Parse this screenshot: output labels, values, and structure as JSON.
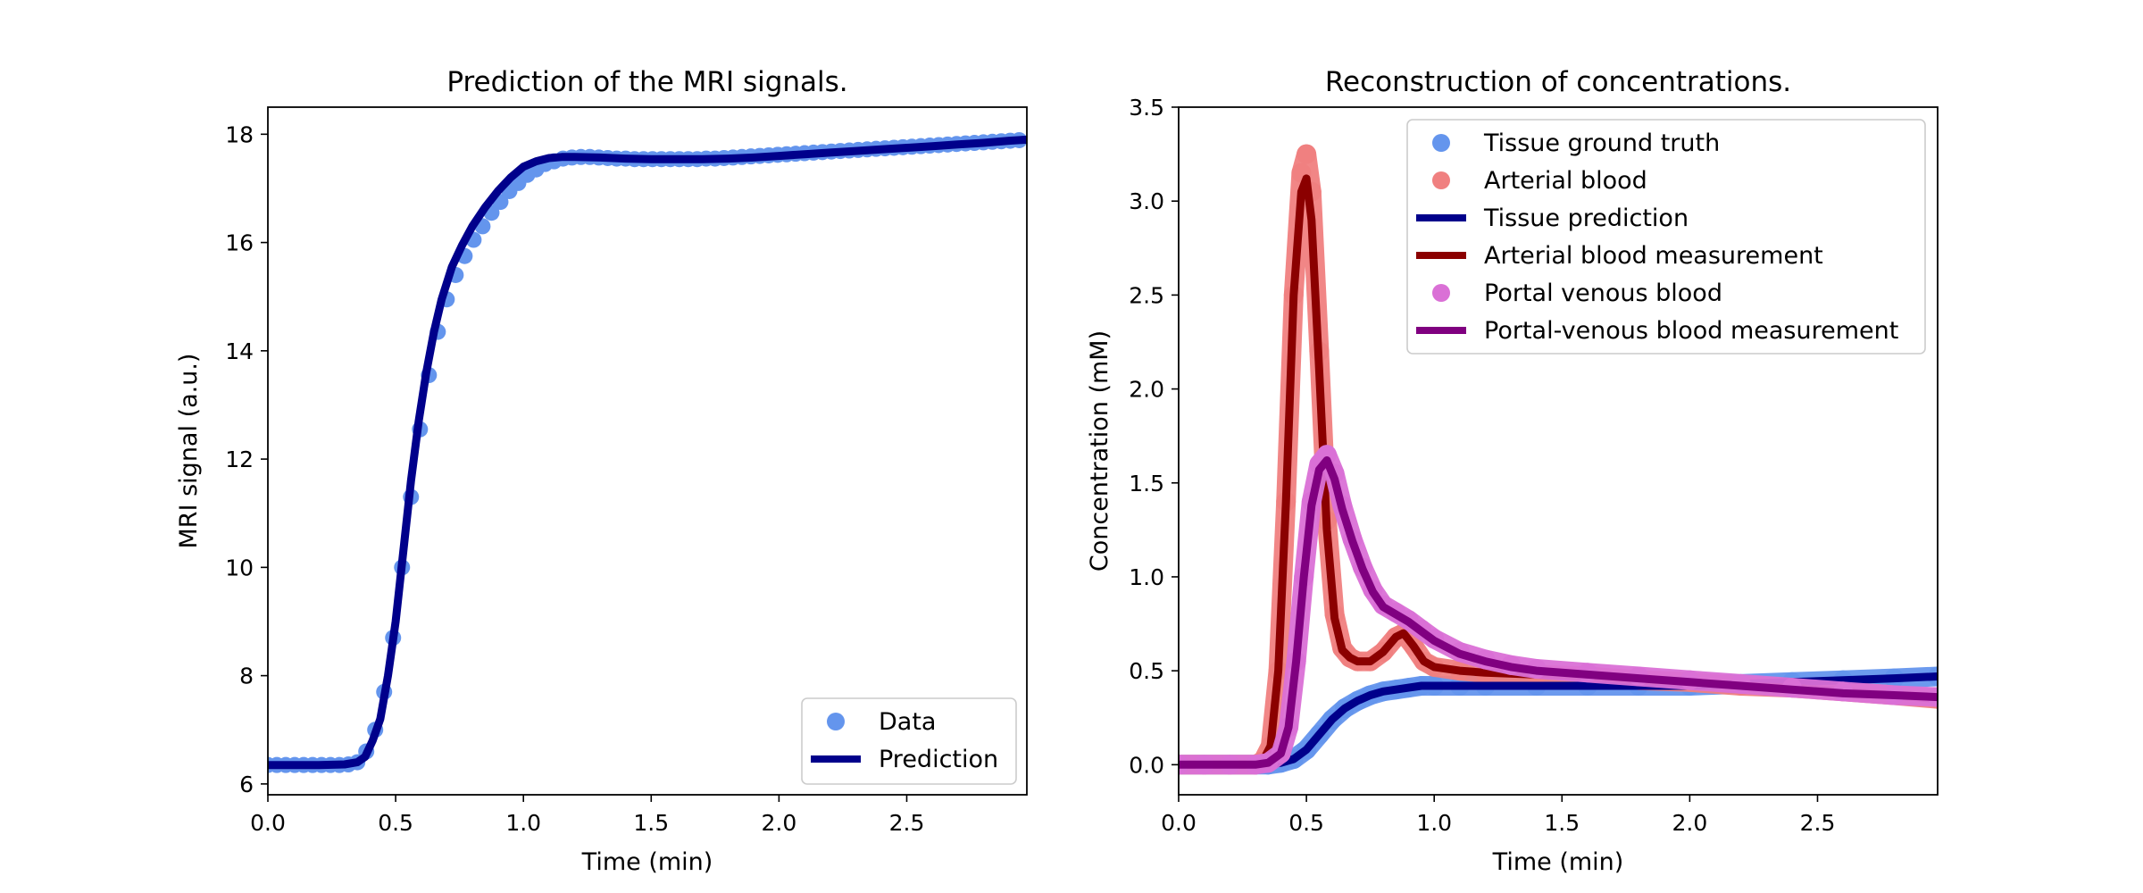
{
  "chart_data": [
    {
      "type": "line",
      "title": "Prediction of the MRI signals.",
      "xlabel": "Time (min)",
      "ylabel": "MRI signal (a.u.)",
      "xlim": [
        0.0,
        2.97
      ],
      "ylim": [
        5.8,
        18.5
      ],
      "xticks": [
        "0.0",
        "0.5",
        "1.0",
        "1.5",
        "2.0",
        "2.5"
      ],
      "yticks": [
        "6",
        "8",
        "10",
        "12",
        "14",
        "16",
        "18"
      ],
      "grid": false,
      "legend_position": "lower-right",
      "series": [
        {
          "name": "Data",
          "style": "scatter",
          "color": "#6495ED",
          "x": [
            0.0,
            0.035,
            0.07,
            0.105,
            0.14,
            0.175,
            0.21,
            0.245,
            0.28,
            0.315,
            0.35,
            0.385,
            0.42,
            0.455,
            0.49,
            0.525,
            0.56,
            0.595,
            0.63,
            0.665,
            0.7,
            0.735,
            0.77,
            0.805,
            0.84,
            0.875,
            0.91,
            0.945,
            0.98,
            1.015,
            1.05,
            1.085,
            1.12,
            1.155,
            1.19,
            1.225,
            1.26,
            1.295,
            1.33,
            1.365,
            1.4,
            1.435,
            1.47,
            1.505,
            1.54,
            1.575,
            1.61,
            1.645,
            1.68,
            1.715,
            1.75,
            1.785,
            1.82,
            1.855,
            1.89,
            1.925,
            1.96,
            1.995,
            2.03,
            2.065,
            2.1,
            2.135,
            2.17,
            2.205,
            2.24,
            2.275,
            2.31,
            2.345,
            2.38,
            2.415,
            2.45,
            2.485,
            2.52,
            2.555,
            2.59,
            2.625,
            2.66,
            2.695,
            2.73,
            2.765,
            2.8,
            2.835,
            2.87,
            2.905,
            2.94
          ],
          "y": [
            6.35,
            6.35,
            6.35,
            6.35,
            6.35,
            6.35,
            6.35,
            6.35,
            6.35,
            6.36,
            6.4,
            6.6,
            7.0,
            7.7,
            8.7,
            10.0,
            11.3,
            12.55,
            13.55,
            14.35,
            14.95,
            15.4,
            15.75,
            16.05,
            16.3,
            16.55,
            16.75,
            16.95,
            17.1,
            17.25,
            17.35,
            17.45,
            17.5,
            17.55,
            17.57,
            17.58,
            17.58,
            17.57,
            17.56,
            17.55,
            17.55,
            17.54,
            17.54,
            17.54,
            17.54,
            17.54,
            17.54,
            17.54,
            17.54,
            17.55,
            17.55,
            17.56,
            17.57,
            17.58,
            17.59,
            17.6,
            17.61,
            17.62,
            17.63,
            17.64,
            17.65,
            17.66,
            17.67,
            17.68,
            17.69,
            17.7,
            17.71,
            17.72,
            17.73,
            17.74,
            17.75,
            17.76,
            17.77,
            17.78,
            17.79,
            17.8,
            17.81,
            17.82,
            17.83,
            17.84,
            17.85,
            17.86,
            17.87,
            17.88,
            17.89
          ]
        },
        {
          "name": "Prediction",
          "style": "line",
          "color": "#00008B",
          "x": [
            0.0,
            0.1,
            0.2,
            0.3,
            0.35,
            0.38,
            0.41,
            0.44,
            0.47,
            0.5,
            0.53,
            0.56,
            0.59,
            0.62,
            0.65,
            0.68,
            0.72,
            0.76,
            0.8,
            0.85,
            0.9,
            0.95,
            1.0,
            1.05,
            1.1,
            1.15,
            1.2,
            1.3,
            1.4,
            1.5,
            1.6,
            1.7,
            1.8,
            1.9,
            2.0,
            2.1,
            2.2,
            2.3,
            2.4,
            2.5,
            2.6,
            2.7,
            2.8,
            2.9,
            2.97
          ],
          "y": [
            6.35,
            6.35,
            6.35,
            6.36,
            6.4,
            6.5,
            6.8,
            7.2,
            8.0,
            9.0,
            10.3,
            11.6,
            12.7,
            13.6,
            14.35,
            14.95,
            15.55,
            15.95,
            16.3,
            16.65,
            16.95,
            17.2,
            17.4,
            17.5,
            17.56,
            17.58,
            17.58,
            17.57,
            17.55,
            17.54,
            17.54,
            17.54,
            17.55,
            17.57,
            17.6,
            17.63,
            17.66,
            17.69,
            17.72,
            17.75,
            17.78,
            17.81,
            17.84,
            17.88,
            17.9
          ]
        }
      ]
    },
    {
      "type": "line",
      "title": "Reconstruction of concentrations.",
      "xlabel": "Time (min)",
      "ylabel": "Concentration (mM)",
      "xlim": [
        0.0,
        2.97
      ],
      "ylim": [
        -0.16,
        3.5
      ],
      "xticks": [
        "0.0",
        "0.5",
        "1.0",
        "1.5",
        "2.0",
        "2.5"
      ],
      "yticks": [
        "0.0",
        "0.5",
        "1.0",
        "1.5",
        "2.0",
        "2.5",
        "3.0",
        "3.5"
      ],
      "grid": false,
      "legend_position": "upper-right",
      "series": [
        {
          "name": "Tissue ground truth",
          "style": "scatter",
          "color": "#6495ED",
          "x": [
            0.0,
            0.1,
            0.2,
            0.3,
            0.35,
            0.4,
            0.45,
            0.5,
            0.55,
            0.6,
            0.65,
            0.7,
            0.75,
            0.8,
            0.85,
            0.9,
            0.95,
            1.0,
            1.1,
            1.2,
            1.4,
            1.6,
            1.8,
            2.0,
            2.2,
            2.4,
            2.6,
            2.8,
            2.97
          ],
          "y": [
            0.0,
            0.0,
            0.0,
            0.0,
            0.0,
            0.01,
            0.03,
            0.08,
            0.16,
            0.24,
            0.3,
            0.34,
            0.37,
            0.39,
            0.4,
            0.41,
            0.42,
            0.42,
            0.42,
            0.42,
            0.42,
            0.42,
            0.42,
            0.42,
            0.43,
            0.44,
            0.45,
            0.46,
            0.47
          ]
        },
        {
          "name": "Arterial blood",
          "style": "scatter",
          "color": "#F08080",
          "x": [
            0.0,
            0.1,
            0.2,
            0.3,
            0.33,
            0.36,
            0.39,
            0.42,
            0.45,
            0.48,
            0.5,
            0.52,
            0.55,
            0.58,
            0.61,
            0.64,
            0.67,
            0.7,
            0.75,
            0.8,
            0.85,
            0.88,
            0.92,
            0.96,
            1.0,
            1.1,
            1.2,
            1.4,
            1.6,
            1.8,
            2.0,
            2.2,
            2.4,
            2.6,
            2.8,
            2.97
          ],
          "y": [
            0.0,
            0.0,
            0.0,
            0.0,
            0.02,
            0.1,
            0.5,
            1.4,
            2.5,
            3.15,
            3.25,
            3.05,
            2.2,
            1.3,
            0.8,
            0.62,
            0.57,
            0.55,
            0.55,
            0.6,
            0.68,
            0.7,
            0.63,
            0.55,
            0.52,
            0.5,
            0.49,
            0.48,
            0.47,
            0.45,
            0.44,
            0.42,
            0.41,
            0.39,
            0.37,
            0.35
          ]
        },
        {
          "name": "Tissue prediction",
          "style": "line",
          "color": "#00008B",
          "x": [
            0.0,
            0.1,
            0.2,
            0.3,
            0.35,
            0.4,
            0.45,
            0.5,
            0.55,
            0.6,
            0.65,
            0.7,
            0.75,
            0.8,
            0.85,
            0.9,
            0.95,
            1.0,
            1.1,
            1.2,
            1.4,
            1.6,
            1.8,
            2.0,
            2.2,
            2.4,
            2.6,
            2.8,
            2.97
          ],
          "y": [
            0.0,
            0.0,
            0.0,
            0.0,
            0.0,
            0.01,
            0.03,
            0.08,
            0.16,
            0.24,
            0.3,
            0.34,
            0.37,
            0.39,
            0.4,
            0.41,
            0.42,
            0.42,
            0.42,
            0.42,
            0.42,
            0.42,
            0.42,
            0.42,
            0.43,
            0.44,
            0.45,
            0.46,
            0.47
          ]
        },
        {
          "name": "Arterial blood measurement",
          "style": "line",
          "color": "#8B0000",
          "x": [
            0.0,
            0.1,
            0.2,
            0.3,
            0.33,
            0.36,
            0.39,
            0.42,
            0.45,
            0.48,
            0.5,
            0.52,
            0.55,
            0.58,
            0.61,
            0.64,
            0.67,
            0.7,
            0.75,
            0.8,
            0.85,
            0.88,
            0.92,
            0.96,
            1.0,
            1.1,
            1.2,
            1.4,
            1.6,
            1.8,
            2.0,
            2.2,
            2.4,
            2.6,
            2.8,
            2.97
          ],
          "y": [
            0.0,
            0.0,
            0.0,
            0.0,
            0.02,
            0.1,
            0.5,
            1.4,
            2.5,
            3.05,
            3.12,
            2.9,
            2.1,
            1.25,
            0.78,
            0.61,
            0.57,
            0.55,
            0.55,
            0.6,
            0.68,
            0.7,
            0.63,
            0.55,
            0.52,
            0.5,
            0.49,
            0.48,
            0.47,
            0.45,
            0.44,
            0.42,
            0.41,
            0.39,
            0.37,
            0.35
          ]
        },
        {
          "name": "Portal venous blood",
          "style": "scatter",
          "color": "#DA70D6",
          "x": [
            0.0,
            0.1,
            0.2,
            0.3,
            0.35,
            0.4,
            0.43,
            0.46,
            0.49,
            0.52,
            0.55,
            0.58,
            0.61,
            0.64,
            0.68,
            0.72,
            0.76,
            0.8,
            0.85,
            0.9,
            0.95,
            1.0,
            1.1,
            1.2,
            1.3,
            1.4,
            1.6,
            1.8,
            2.0,
            2.2,
            2.4,
            2.6,
            2.8,
            2.97
          ],
          "y": [
            0.0,
            0.0,
            0.0,
            0.0,
            0.01,
            0.06,
            0.2,
            0.55,
            1.0,
            1.4,
            1.6,
            1.65,
            1.55,
            1.38,
            1.2,
            1.05,
            0.93,
            0.85,
            0.81,
            0.77,
            0.72,
            0.67,
            0.6,
            0.56,
            0.53,
            0.51,
            0.49,
            0.47,
            0.45,
            0.43,
            0.41,
            0.39,
            0.37,
            0.36
          ]
        },
        {
          "name": "Portal-venous blood measurement",
          "style": "line",
          "color": "#800080",
          "x": [
            0.0,
            0.1,
            0.2,
            0.3,
            0.35,
            0.4,
            0.43,
            0.46,
            0.49,
            0.52,
            0.55,
            0.58,
            0.61,
            0.64,
            0.68,
            0.72,
            0.76,
            0.8,
            0.85,
            0.9,
            0.95,
            1.0,
            1.1,
            1.2,
            1.3,
            1.4,
            1.6,
            1.8,
            2.0,
            2.2,
            2.4,
            2.6,
            2.8,
            2.97
          ],
          "y": [
            0.0,
            0.0,
            0.0,
            0.0,
            0.01,
            0.06,
            0.2,
            0.55,
            1.0,
            1.38,
            1.57,
            1.62,
            1.52,
            1.36,
            1.19,
            1.04,
            0.92,
            0.84,
            0.8,
            0.76,
            0.71,
            0.66,
            0.59,
            0.55,
            0.52,
            0.5,
            0.48,
            0.46,
            0.44,
            0.42,
            0.4,
            0.38,
            0.37,
            0.36
          ]
        }
      ]
    }
  ]
}
